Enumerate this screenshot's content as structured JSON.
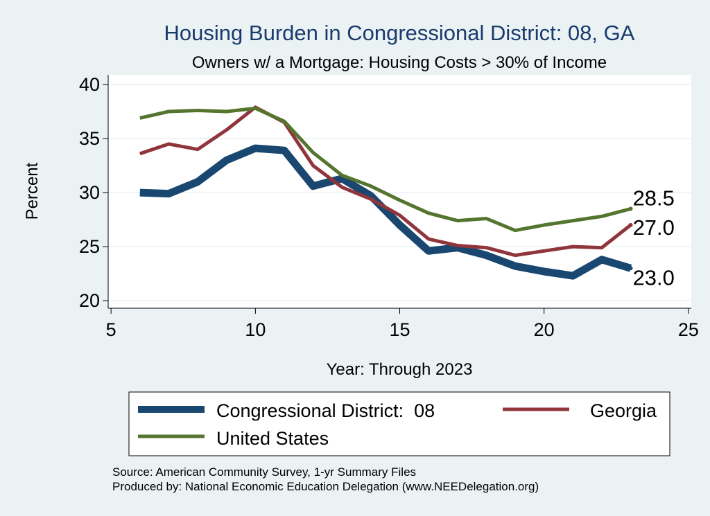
{
  "chart_data": {
    "type": "line",
    "title": "Housing Burden in Congressional District:  08, GA",
    "subtitle": "Owners w/ a Mortgage: Housing Costs > 30% of Income",
    "xlabel": "Year: Through 2023",
    "ylabel": "Percent",
    "xlim": [
      4.9,
      25.1
    ],
    "ylim": [
      19.3,
      40.9
    ],
    "xticks": [
      "5",
      "10",
      "15",
      "20",
      "25"
    ],
    "yticks": [
      "20",
      "25",
      "30",
      "35",
      "40"
    ],
    "grid": true,
    "x": [
      6,
      7,
      8,
      9,
      10,
      11,
      12,
      13,
      14,
      15,
      16,
      17,
      18,
      19,
      20,
      21,
      22,
      23
    ],
    "series": [
      {
        "name": "Congressional District:  08",
        "color": "#1a476f",
        "values": [
          30.0,
          29.9,
          31.0,
          33.0,
          34.1,
          33.9,
          30.6,
          31.3,
          29.7,
          27.0,
          24.6,
          24.9,
          24.2,
          23.2,
          22.7,
          22.3,
          23.8,
          23.0
        ],
        "end_label": "23.0"
      },
      {
        "name": "Georgia",
        "color": "#90353b",
        "values": [
          33.6,
          34.5,
          34.0,
          35.8,
          37.9,
          36.5,
          32.5,
          30.5,
          29.4,
          27.9,
          25.7,
          25.1,
          24.9,
          24.2,
          24.6,
          25.0,
          24.9,
          27.0
        ],
        "end_label": "27.0"
      },
      {
        "name": "United States",
        "color": "#55752f",
        "values": [
          36.9,
          37.5,
          37.6,
          37.5,
          37.8,
          36.6,
          33.7,
          31.6,
          30.6,
          29.3,
          28.1,
          27.4,
          27.6,
          26.5,
          27.0,
          27.4,
          27.8,
          28.5
        ],
        "end_label": "28.5"
      }
    ],
    "legend_position": "bottom"
  },
  "footer": {
    "source": "Source: American Community Survey, 1-yr Summary Files",
    "produced_by": "Produced by: National Economic Education Delegation (www.NEEDelegation.org)"
  }
}
